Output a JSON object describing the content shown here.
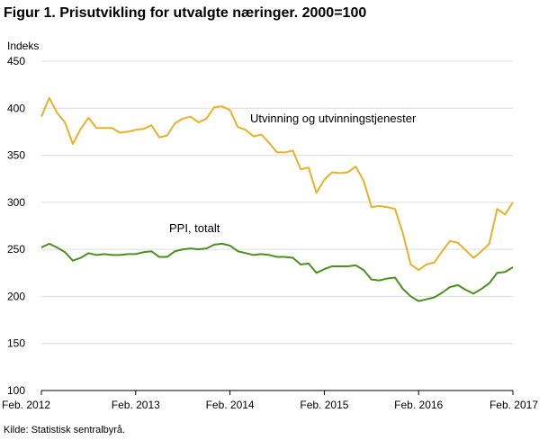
{
  "title": "Figur 1. Prisutvikling for utvalgte næringer. 2000=100",
  "source": "Kilde: Statistisk sentralbyrå.",
  "chart_data": {
    "type": "line",
    "ylabel": "Indeks",
    "ylim": [
      100,
      450
    ],
    "yticks": [
      100,
      150,
      200,
      250,
      300,
      350,
      400,
      450
    ],
    "xticks": [
      "Feb. 2012",
      "Feb. 2013",
      "Feb. 2014",
      "Feb. 2015",
      "Feb. 2016",
      "Feb. 2017"
    ],
    "x_start": "2012-02",
    "x_end": "2017-02",
    "grid": "horizontal",
    "series": [
      {
        "name": "Utvinning og utvinningstjenester",
        "color": "#e8b127",
        "values": [
          391,
          411,
          395,
          385,
          362,
          378,
          390,
          379,
          379,
          379,
          374,
          375,
          377,
          378,
          382,
          369,
          371,
          384,
          389,
          391,
          385,
          389,
          401,
          402,
          398,
          380,
          377,
          370,
          372,
          363,
          353,
          353,
          355,
          335,
          337,
          310,
          324,
          332,
          331,
          332,
          338,
          323,
          295,
          296,
          295,
          293,
          267,
          234,
          228,
          234,
          236,
          248,
          259,
          257,
          249,
          241,
          248,
          256,
          293,
          287,
          300
        ]
      },
      {
        "name": "PPI, totalt",
        "color": "#4b8f1e",
        "values": [
          252,
          256,
          252,
          247,
          238,
          241,
          246,
          244,
          245,
          244,
          244,
          245,
          245,
          247,
          248,
          242,
          242,
          248,
          250,
          251,
          250,
          251,
          255,
          256,
          254,
          248,
          246,
          244,
          245,
          244,
          242,
          242,
          241,
          234,
          235,
          225,
          229,
          232,
          232,
          232,
          233,
          228,
          218,
          217,
          219,
          220,
          208,
          200,
          195,
          197,
          199,
          204,
          210,
          212,
          207,
          203,
          208,
          214,
          225,
          226,
          231
        ]
      }
    ]
  }
}
